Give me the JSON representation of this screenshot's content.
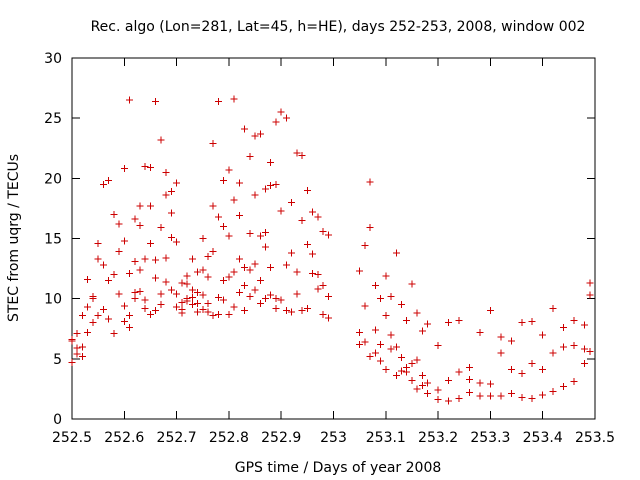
{
  "chart_data": {
    "type": "scatter",
    "title": "Rec. algo (Lon=281, Lat=45, h=HE), days 252-253, 2008, window 002",
    "xlabel": "GPS time / Days of year 2008",
    "ylabel": "STEC from uqrg / TECUs",
    "xlim": [
      252.5,
      253.5
    ],
    "ylim": [
      0,
      30
    ],
    "xticks": [
      "252.5",
      "252.6",
      "252.7",
      "252.8",
      "252.9",
      "253",
      "253.1",
      "253.2",
      "253.3",
      "253.4",
      "253.5"
    ],
    "yticks": [
      "0",
      "5",
      "10",
      "15",
      "20",
      "25",
      "30"
    ],
    "grid": false,
    "marker": "+",
    "colors": {
      "point": "#cc0000",
      "axis": "#000000"
    },
    "series": [
      {
        "x": [
          252.5,
          252.51,
          252.52,
          252.53,
          252.54,
          252.55,
          252.56,
          252.57,
          252.58,
          252.59,
          252.5,
          252.51,
          252.52,
          252.53,
          252.54,
          252.55,
          252.56,
          252.57,
          252.58,
          252.59,
          252.5,
          252.51,
          252.52,
          252.53,
          252.54,
          252.55,
          252.56,
          252.57,
          252.58,
          252.59,
          252.6,
          252.61,
          252.62,
          252.63,
          252.64,
          252.65,
          252.66,
          252.67,
          252.68,
          252.69,
          252.6,
          252.61,
          252.62,
          252.63,
          252.64,
          252.65,
          252.66,
          252.67,
          252.68,
          252.69,
          252.6,
          252.61,
          252.62,
          252.63,
          252.64,
          252.65,
          252.66,
          252.67,
          252.68,
          252.69,
          252.6,
          252.61,
          252.62,
          252.63,
          252.64,
          252.65,
          252.66,
          252.67,
          252.68,
          252.69,
          252.7,
          252.71,
          252.72,
          252.73,
          252.74,
          252.75,
          252.76,
          252.77,
          252.78,
          252.79,
          252.7,
          252.71,
          252.72,
          252.73,
          252.74,
          252.75,
          252.76,
          252.77,
          252.78,
          252.79,
          252.7,
          252.71,
          252.72,
          252.73,
          252.74,
          252.75,
          252.76,
          252.77,
          252.78,
          252.79,
          252.7,
          252.71,
          252.72,
          252.73,
          252.74,
          252.75,
          252.76,
          252.77,
          252.78,
          252.79,
          252.8,
          252.81,
          252.82,
          252.83,
          252.84,
          252.85,
          252.86,
          252.87,
          252.88,
          252.89,
          252.8,
          252.81,
          252.82,
          252.83,
          252.84,
          252.85,
          252.86,
          252.87,
          252.88,
          252.89,
          252.8,
          252.81,
          252.82,
          252.83,
          252.84,
          252.85,
          252.86,
          252.87,
          252.88,
          252.89,
          252.8,
          252.81,
          252.82,
          252.83,
          252.84,
          252.85,
          252.86,
          252.87,
          252.88,
          252.89,
          252.9,
          252.91,
          252.92,
          252.93,
          252.94,
          252.95,
          252.96,
          252.97,
          252.98,
          252.99,
          252.9,
          252.91,
          252.92,
          252.93,
          252.94,
          252.95,
          252.96,
          252.97,
          252.98,
          252.99,
          252.9,
          252.91,
          252.92,
          252.93,
          252.94,
          252.95,
          252.96,
          252.97,
          252.98,
          252.99,
          253.05,
          253.06,
          253.07,
          253.08,
          253.09,
          253.1,
          253.11,
          253.12,
          253.13,
          253.14,
          253.05,
          253.06,
          253.07,
          253.08,
          253.09,
          253.1,
          253.11,
          253.12,
          253.13,
          253.14,
          253.05,
          253.06,
          253.07,
          253.08,
          253.09,
          253.1,
          253.11,
          253.12,
          253.13,
          253.14,
          253.15,
          253.16,
          253.17,
          253.18,
          253.2,
          253.22,
          253.24,
          253.26,
          253.28,
          253.3,
          253.15,
          253.16,
          253.17,
          253.18,
          253.2,
          253.22,
          253.24,
          253.26,
          253.28,
          253.3,
          253.15,
          253.16,
          253.17,
          253.18,
          253.2,
          253.22,
          253.24,
          253.26,
          253.28,
          253.3,
          253.32,
          253.34,
          253.36,
          253.38,
          253.4,
          253.42,
          253.44,
          253.46,
          253.48,
          253.49,
          253.32,
          253.34,
          253.36,
          253.38,
          253.4,
          253.42,
          253.44,
          253.46,
          253.48,
          253.49,
          253.32,
          253.34,
          253.36,
          253.38,
          253.4,
          253.42,
          253.44,
          253.46,
          253.48,
          253.49
        ],
        "y": [
          6.5,
          7.1,
          8.6,
          9.3,
          10.0,
          14.6,
          19.5,
          19.8,
          17.0,
          16.2,
          4.7,
          5.4,
          6.0,
          7.2,
          8.0,
          8.6,
          9.1,
          11.5,
          12.0,
          13.9,
          6.6,
          5.9,
          5.2,
          11.6,
          10.2,
          13.3,
          12.8,
          8.3,
          7.1,
          10.4,
          20.8,
          26.5,
          16.6,
          17.7,
          21.0,
          20.9,
          26.4,
          23.2,
          20.5,
          17.1,
          14.8,
          12.1,
          13.1,
          16.1,
          13.3,
          17.7,
          13.2,
          15.9,
          18.6,
          18.9,
          9.4,
          8.6,
          10.0,
          10.6,
          9.2,
          8.7,
          9.0,
          10.4,
          11.4,
          10.7,
          8.1,
          7.6,
          10.5,
          12.4,
          9.9,
          14.6,
          11.7,
          9.5,
          13.4,
          15.1,
          19.6,
          11.3,
          11.9,
          9.5,
          10.5,
          12.4,
          13.5,
          17.7,
          16.8,
          16.0,
          10.4,
          9.7,
          11.2,
          10.1,
          12.2,
          10.3,
          9.6,
          22.9,
          26.4,
          19.8,
          14.7,
          9.1,
          9.8,
          13.3,
          8.9,
          15.0,
          11.8,
          13.9,
          10.1,
          11.5,
          9.3,
          8.8,
          10.0,
          10.7,
          9.6,
          9.1,
          8.9,
          8.6,
          8.7,
          9.9,
          20.7,
          26.6,
          19.6,
          24.1,
          21.8,
          23.5,
          23.7,
          19.1,
          21.3,
          24.7,
          15.2,
          18.2,
          16.9,
          12.6,
          15.4,
          18.6,
          15.2,
          15.5,
          19.4,
          19.5,
          11.8,
          12.2,
          13.3,
          11.1,
          12.4,
          12.9,
          11.5,
          14.3,
          12.6,
          10.0,
          8.7,
          9.3,
          10.5,
          9.0,
          10.2,
          10.7,
          9.6,
          10.0,
          10.3,
          9.2,
          25.5,
          25.0,
          18.0,
          22.1,
          21.9,
          19.0,
          17.2,
          16.8,
          15.6,
          15.3,
          17.3,
          12.8,
          13.8,
          12.2,
          16.5,
          14.5,
          13.7,
          12.0,
          11.1,
          10.2,
          9.9,
          9.0,
          8.9,
          10.4,
          9.0,
          9.2,
          12.1,
          10.8,
          8.7,
          8.4,
          12.3,
          14.4,
          19.7,
          11.1,
          10.0,
          11.9,
          10.2,
          13.8,
          9.5,
          8.2,
          6.2,
          9.4,
          15.9,
          7.4,
          6.2,
          8.6,
          7.0,
          6.0,
          5.1,
          4.3,
          7.2,
          6.4,
          5.2,
          5.5,
          4.8,
          4.1,
          5.8,
          3.6,
          4.0,
          3.9,
          11.2,
          8.8,
          7.3,
          7.9,
          6.1,
          8.0,
          8.2,
          4.3,
          7.2,
          9.0,
          4.6,
          4.9,
          3.6,
          3.0,
          2.4,
          3.2,
          3.9,
          3.3,
          3.0,
          2.9,
          3.2,
          2.5,
          2.8,
          2.1,
          1.6,
          1.5,
          1.7,
          2.2,
          1.9,
          1.9,
          6.8,
          6.5,
          8.0,
          8.1,
          7.0,
          9.2,
          7.6,
          8.2,
          7.8,
          11.3,
          5.5,
          4.1,
          3.8,
          4.6,
          4.1,
          5.5,
          6.0,
          6.1,
          5.8,
          10.3,
          1.9,
          2.1,
          1.8,
          1.7,
          2.0,
          2.3,
          2.7,
          3.1,
          4.6,
          5.6
        ]
      }
    ]
  }
}
